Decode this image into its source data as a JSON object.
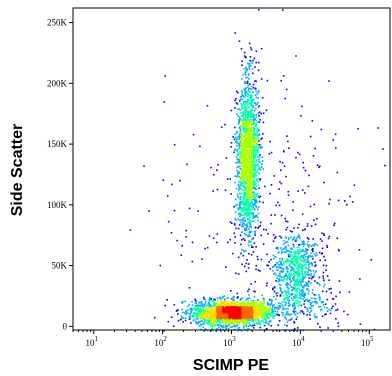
{
  "chart_data": {
    "type": "scatter",
    "subtype": "density scatter (flow cytometry dot plot)",
    "xlabel": "SCIMP PE",
    "ylabel": "Side Scatter",
    "x_scale": "log",
    "y_scale": "linear",
    "xlim": [
      5,
      200000
    ],
    "ylim": [
      -3000,
      262000
    ],
    "x_ticks": [
      {
        "value": 10,
        "base": "10",
        "exp": "1"
      },
      {
        "value": 100,
        "base": "10",
        "exp": "2"
      },
      {
        "value": 1000,
        "base": "10",
        "exp": "3"
      },
      {
        "value": 10000,
        "base": "10",
        "exp": "4"
      },
      {
        "value": 100000,
        "base": "10",
        "exp": "5"
      }
    ],
    "y_ticks": [
      {
        "value": 0,
        "label": "0"
      },
      {
        "value": 50000,
        "label": "50K"
      },
      {
        "value": 100000,
        "label": "100K"
      },
      {
        "value": 150000,
        "label": "150K"
      },
      {
        "value": 200000,
        "label": "200K"
      },
      {
        "value": 250000,
        "label": "250K"
      }
    ],
    "grid": false,
    "legend": "none",
    "colormap": [
      "#0000ff",
      "#00aaff",
      "#00ffaa",
      "#aaff00",
      "#ffdd00",
      "#ff6600",
      "#ff0000"
    ],
    "populations": [
      {
        "x_center": 1000,
        "y_center": 12000,
        "x_log_sd": 0.28,
        "y_sd": 5000,
        "weight": 0.45
      },
      {
        "x_center": 1700,
        "y_center": 140000,
        "x_log_sd": 0.08,
        "y_sd": 32000,
        "weight": 0.33
      },
      {
        "x_center": 8500,
        "y_center": 48000,
        "x_log_sd": 0.16,
        "y_sd": 14000,
        "weight": 0.12
      },
      {
        "x_center": 3000,
        "y_center": 80000,
        "x_log_sd": 0.7,
        "y_sd": 60000,
        "weight": 0.06
      },
      {
        "x_center": 10000,
        "y_center": 20000,
        "x_log_sd": 0.3,
        "y_sd": 8000,
        "weight": 0.04
      }
    ]
  }
}
